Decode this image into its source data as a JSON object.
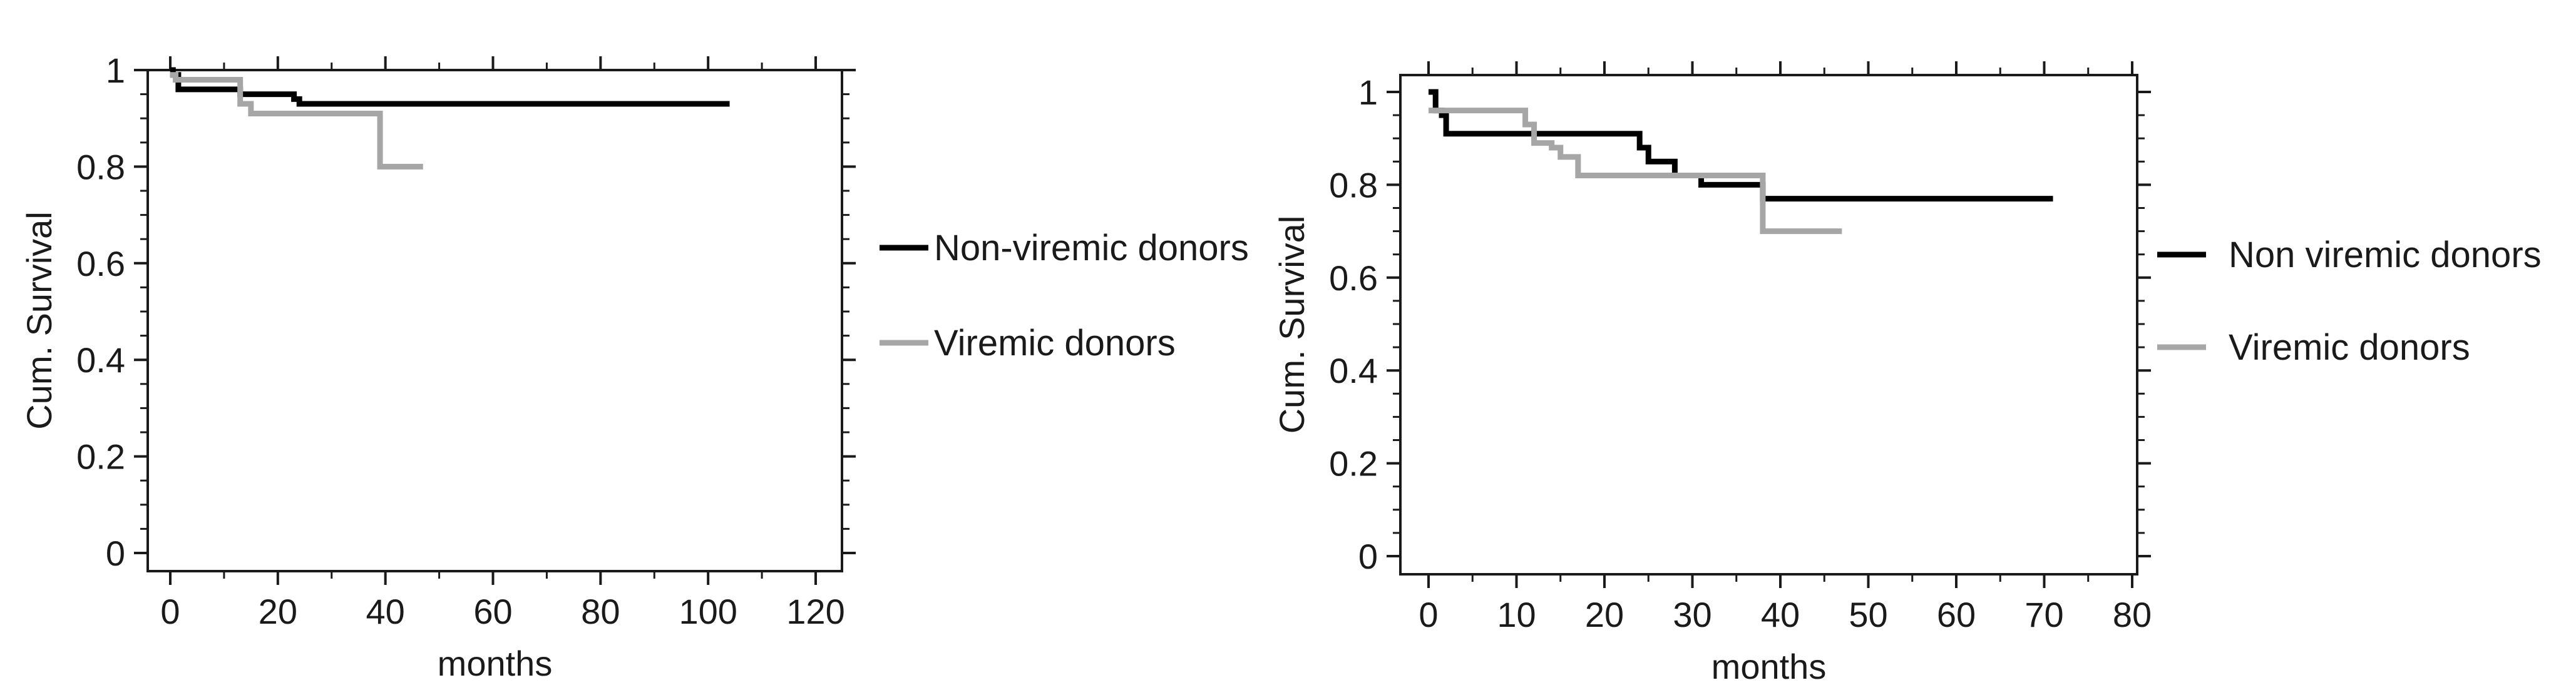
{
  "chart_data": [
    {
      "type": "line",
      "step": true,
      "xlabel": "months",
      "ylabel": "Cum. Survival",
      "xlim": [
        0,
        120
      ],
      "ylim": [
        0,
        1
      ],
      "x_ticks": [
        0,
        20,
        40,
        60,
        80,
        100,
        120
      ],
      "x_tick_labels": [
        "0",
        "20",
        "40",
        "60",
        "80",
        "100",
        "120"
      ],
      "y_ticks": [
        0,
        0.2,
        0.4,
        0.6,
        0.8,
        1
      ],
      "y_tick_labels": [
        "0",
        "0.2",
        "0.4",
        "0.6",
        "0.8",
        "1"
      ],
      "grid": false,
      "legend_position": "right",
      "series": [
        {
          "name": "Non-viremic donors",
          "color": "#000000",
          "x": [
            0,
            0.5,
            1.5,
            4,
            13,
            23,
            24,
            104
          ],
          "y": [
            1.0,
            0.99,
            0.96,
            0.96,
            0.95,
            0.94,
            0.93,
            0.93
          ]
        },
        {
          "name": "Viremic donors",
          "color": "#a6a6a6",
          "x": [
            0,
            1,
            2,
            13,
            15,
            38,
            39,
            47
          ],
          "y": [
            0.99,
            0.98,
            0.98,
            0.93,
            0.91,
            0.91,
            0.8,
            0.8
          ]
        }
      ]
    },
    {
      "type": "line",
      "step": true,
      "xlabel": "months",
      "ylabel": "Cum. Survival",
      "xlim": [
        0,
        80
      ],
      "ylim": [
        0,
        1
      ],
      "x_ticks": [
        0,
        10,
        20,
        30,
        40,
        50,
        60,
        70,
        80
      ],
      "x_tick_labels": [
        "0",
        "10",
        "20",
        "30",
        "40",
        "50",
        "60",
        "70",
        "80"
      ],
      "y_ticks": [
        0,
        0.2,
        0.4,
        0.6,
        0.8,
        1
      ],
      "y_tick_labels": [
        "0",
        "0.2",
        "0.4",
        "0.6",
        "0.8",
        "1"
      ],
      "grid": false,
      "legend_position": "right",
      "series": [
        {
          "name": "Non viremic donors",
          "color": "#000000",
          "x": [
            0,
            0.8,
            1.5,
            2,
            23,
            24,
            25,
            28,
            31,
            38,
            71
          ],
          "y": [
            1.0,
            0.96,
            0.95,
            0.91,
            0.91,
            0.88,
            0.85,
            0.82,
            0.8,
            0.77,
            0.77
          ]
        },
        {
          "name": "Viremic donors",
          "color": "#a6a6a6",
          "x": [
            0,
            1,
            11,
            12,
            14,
            15,
            17,
            38,
            47
          ],
          "y": [
            0.96,
            0.96,
            0.93,
            0.89,
            0.88,
            0.86,
            0.82,
            0.7,
            0.7
          ]
        }
      ]
    }
  ]
}
